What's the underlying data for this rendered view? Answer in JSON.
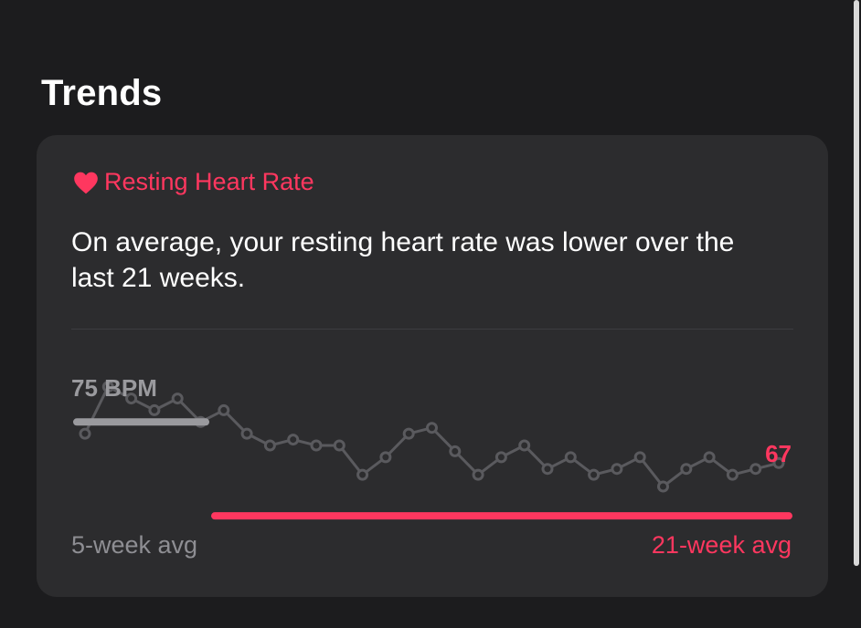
{
  "section": {
    "title": "Trends"
  },
  "card": {
    "title": "Resting Heart Rate",
    "icon": "heart-icon",
    "description": "On average, your resting heart rate was lower over the last 21 weeks.",
    "accent_color": "#ff375f"
  },
  "chart_data": {
    "type": "line",
    "values": [
      74,
      78,
      77,
      76,
      77,
      75,
      76,
      74,
      73,
      73.5,
      73,
      73,
      70.5,
      72,
      74,
      74.5,
      72.5,
      70.5,
      72,
      73,
      71,
      72,
      70.5,
      71,
      72,
      69.5,
      71,
      72,
      70.5,
      71,
      71.5
    ],
    "ylim": [
      66,
      80
    ],
    "recent_avg": {
      "label": "75 BPM",
      "value": 75,
      "weeks": 5,
      "color": "#9a9a9e"
    },
    "long_avg": {
      "label": "67",
      "value": 67,
      "weeks": 21,
      "color": "#ff375f"
    },
    "legend": {
      "left": "5-week avg",
      "right": "21-week avg"
    }
  }
}
